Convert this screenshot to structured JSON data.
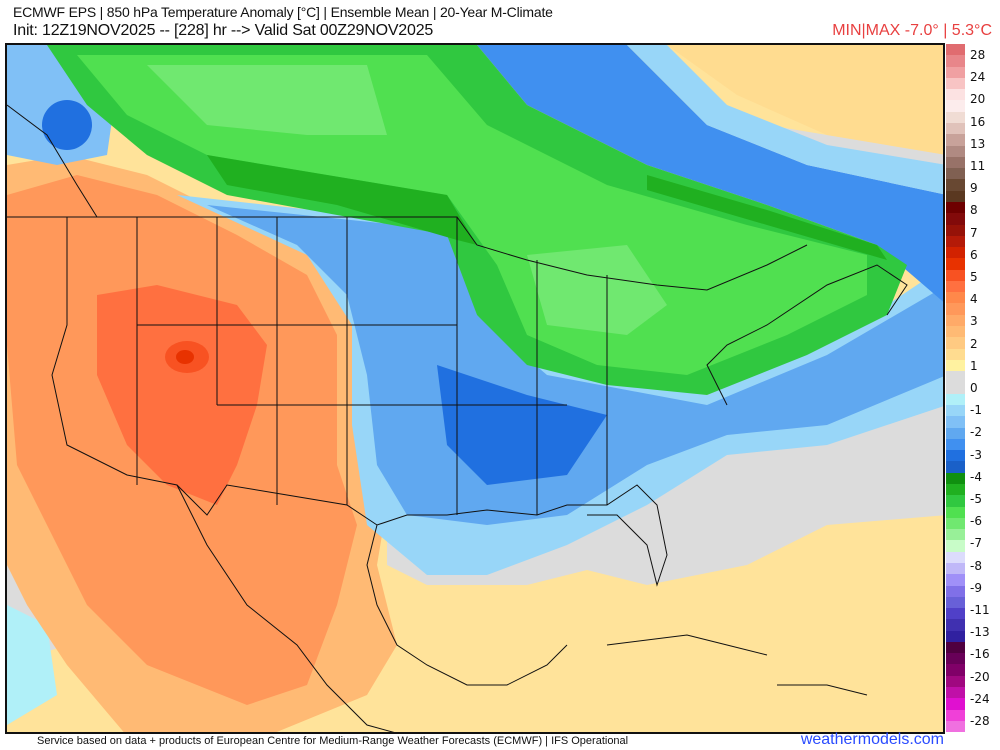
{
  "header": {
    "title": "ECMWF EPS | 850 hPa Temperature Anomaly [°C] | Ensemble Mean | 20-Year M-Climate",
    "init_line": "Init: 12Z19NOV2025 -- [228] hr --> Valid Sat 00Z29NOV2025",
    "minmax": "MIN|MAX -7.0° | 5.3°C"
  },
  "colorbar": {
    "labels": [
      "28",
      "24",
      "20",
      "16",
      "13",
      "11",
      "9",
      "8",
      "7",
      "6",
      "5",
      "4",
      "3",
      "2",
      "1",
      "0",
      "-1",
      "-2",
      "-3",
      "-4",
      "-5",
      "-6",
      "-7",
      "-8",
      "-9",
      "-11",
      "-13",
      "-16",
      "-20",
      "-24",
      "-28"
    ],
    "colors": [
      "#e06c70",
      "#e8868a",
      "#f0a0a2",
      "#f8c4c4",
      "#fce2e2",
      "#fcecec",
      "#f0dcd4",
      "#e0c2ba",
      "#c8a29a",
      "#b08a82",
      "#987268",
      "#806052",
      "#684832",
      "#5a3820",
      "#6e0000",
      "#820a0a",
      "#961208",
      "#b41a08",
      "#d22200",
      "#e83200",
      "#f85222",
      "#ff7040",
      "#ff884a",
      "#ff985a",
      "#ffaa68",
      "#ffba74",
      "#ffca82",
      "#ffdc90",
      "#fff2a0",
      "#dcdcdc",
      "#dcdcdc",
      "#b0f0f8",
      "#98d6f8",
      "#80c0f6",
      "#60a8f0",
      "#4090f0",
      "#2070e0",
      "#1a60c8",
      "#109010",
      "#20b020",
      "#30c840",
      "#50e050",
      "#70e870",
      "#98f098",
      "#c8fcc8",
      "#dcdcfc",
      "#c0b8f8",
      "#a090f8",
      "#8070e8",
      "#6860d8",
      "#5040c8",
      "#4030b0",
      "#3020a0",
      "#500040",
      "#680058",
      "#800068",
      "#a00880",
      "#c010a8",
      "#e010d0",
      "#f040d8",
      "#f070e0"
    ]
  },
  "footer": {
    "attribution": "Service based on data + products of European Centre for Medium-Range Weather Forecasts (ECMWF) | IFS Operational",
    "brand": "weathermodels.com"
  }
}
